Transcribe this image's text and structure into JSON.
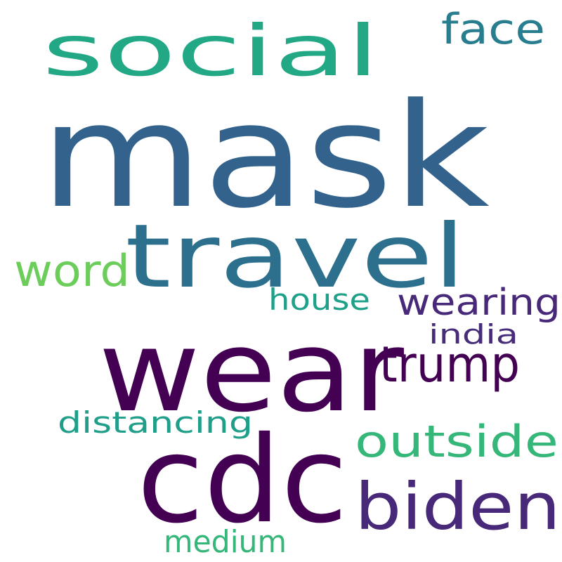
{
  "words": [
    {
      "key": "mask",
      "text": "mask",
      "color": "#33638d"
    },
    {
      "key": "social",
      "text": "social",
      "color": "#22a884"
    },
    {
      "key": "face",
      "text": "face",
      "color": "#287d8e"
    },
    {
      "key": "travel",
      "text": "travel",
      "color": "#2d708e"
    },
    {
      "key": "word",
      "text": "word",
      "color": "#6ccd5a"
    },
    {
      "key": "house",
      "text": "house",
      "color": "#1fa088"
    },
    {
      "key": "wearing",
      "text": "wearing",
      "color": "#482878"
    },
    {
      "key": "india",
      "text": "india",
      "color": "#472c7a"
    },
    {
      "key": "wear",
      "text": "wear",
      "color": "#440154"
    },
    {
      "key": "trump",
      "text": "trump",
      "color": "#440154"
    },
    {
      "key": "distancing",
      "text": "distancing",
      "color": "#1f9e89"
    },
    {
      "key": "outside",
      "text": "outside",
      "color": "#35b779"
    },
    {
      "key": "cdc",
      "text": "cdc",
      "color": "#440154"
    },
    {
      "key": "biden",
      "text": "biden",
      "color": "#482878"
    },
    {
      "key": "medium",
      "text": "medium",
      "color": "#35b779"
    }
  ]
}
